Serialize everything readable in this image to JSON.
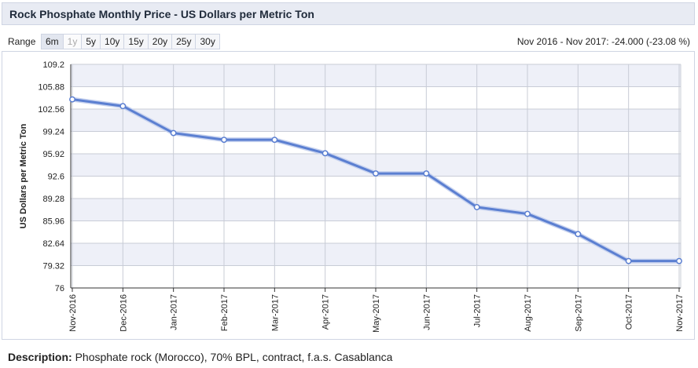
{
  "header": {
    "title": "Rock Phosphate Monthly Price - US Dollars per Metric Ton"
  },
  "range": {
    "label": "Range",
    "buttons": [
      {
        "label": "6m",
        "state": "active"
      },
      {
        "label": "1y",
        "state": "disabled"
      },
      {
        "label": "5y",
        "state": "normal"
      },
      {
        "label": "10y",
        "state": "normal"
      },
      {
        "label": "15y",
        "state": "normal"
      },
      {
        "label": "20y",
        "state": "normal"
      },
      {
        "label": "25y",
        "state": "normal"
      },
      {
        "label": "30y",
        "state": "normal"
      }
    ],
    "summary": "Nov 2016 - Nov 2017: -24.000 (-23.08 %)"
  },
  "chart_data": {
    "type": "line",
    "title": "",
    "xlabel": "",
    "ylabel": "US Dollars per Metric Ton",
    "categories": [
      "Nov-2016",
      "Dec-2016",
      "Jan-2017",
      "Feb-2017",
      "Mar-2017",
      "Apr-2017",
      "May-2017",
      "Jun-2017",
      "Jul-2017",
      "Aug-2017",
      "Sep-2017",
      "Oct-2017",
      "Nov-2017"
    ],
    "series": [
      {
        "values": [
          104.0,
          103.0,
          99.0,
          98.0,
          98.0,
          96.0,
          93.0,
          93.0,
          88.0,
          87.0,
          84.0,
          80.0,
          80.0
        ]
      }
    ],
    "ylim": [
      76,
      109.2
    ],
    "yticks": [
      "109.2",
      "105.88",
      "102.56",
      "99.24",
      "95.92",
      "92.6",
      "89.28",
      "85.96",
      "82.64",
      "79.32",
      "76"
    ],
    "grid": true,
    "colors": {
      "line": "#5b7fd1",
      "band": "#eef0f8",
      "grid": "#c8ccd6"
    }
  },
  "description": {
    "label": "Description:",
    "text": "Phosphate rock (Morocco), 70% BPL, contract, f.a.s. Casablanca"
  }
}
